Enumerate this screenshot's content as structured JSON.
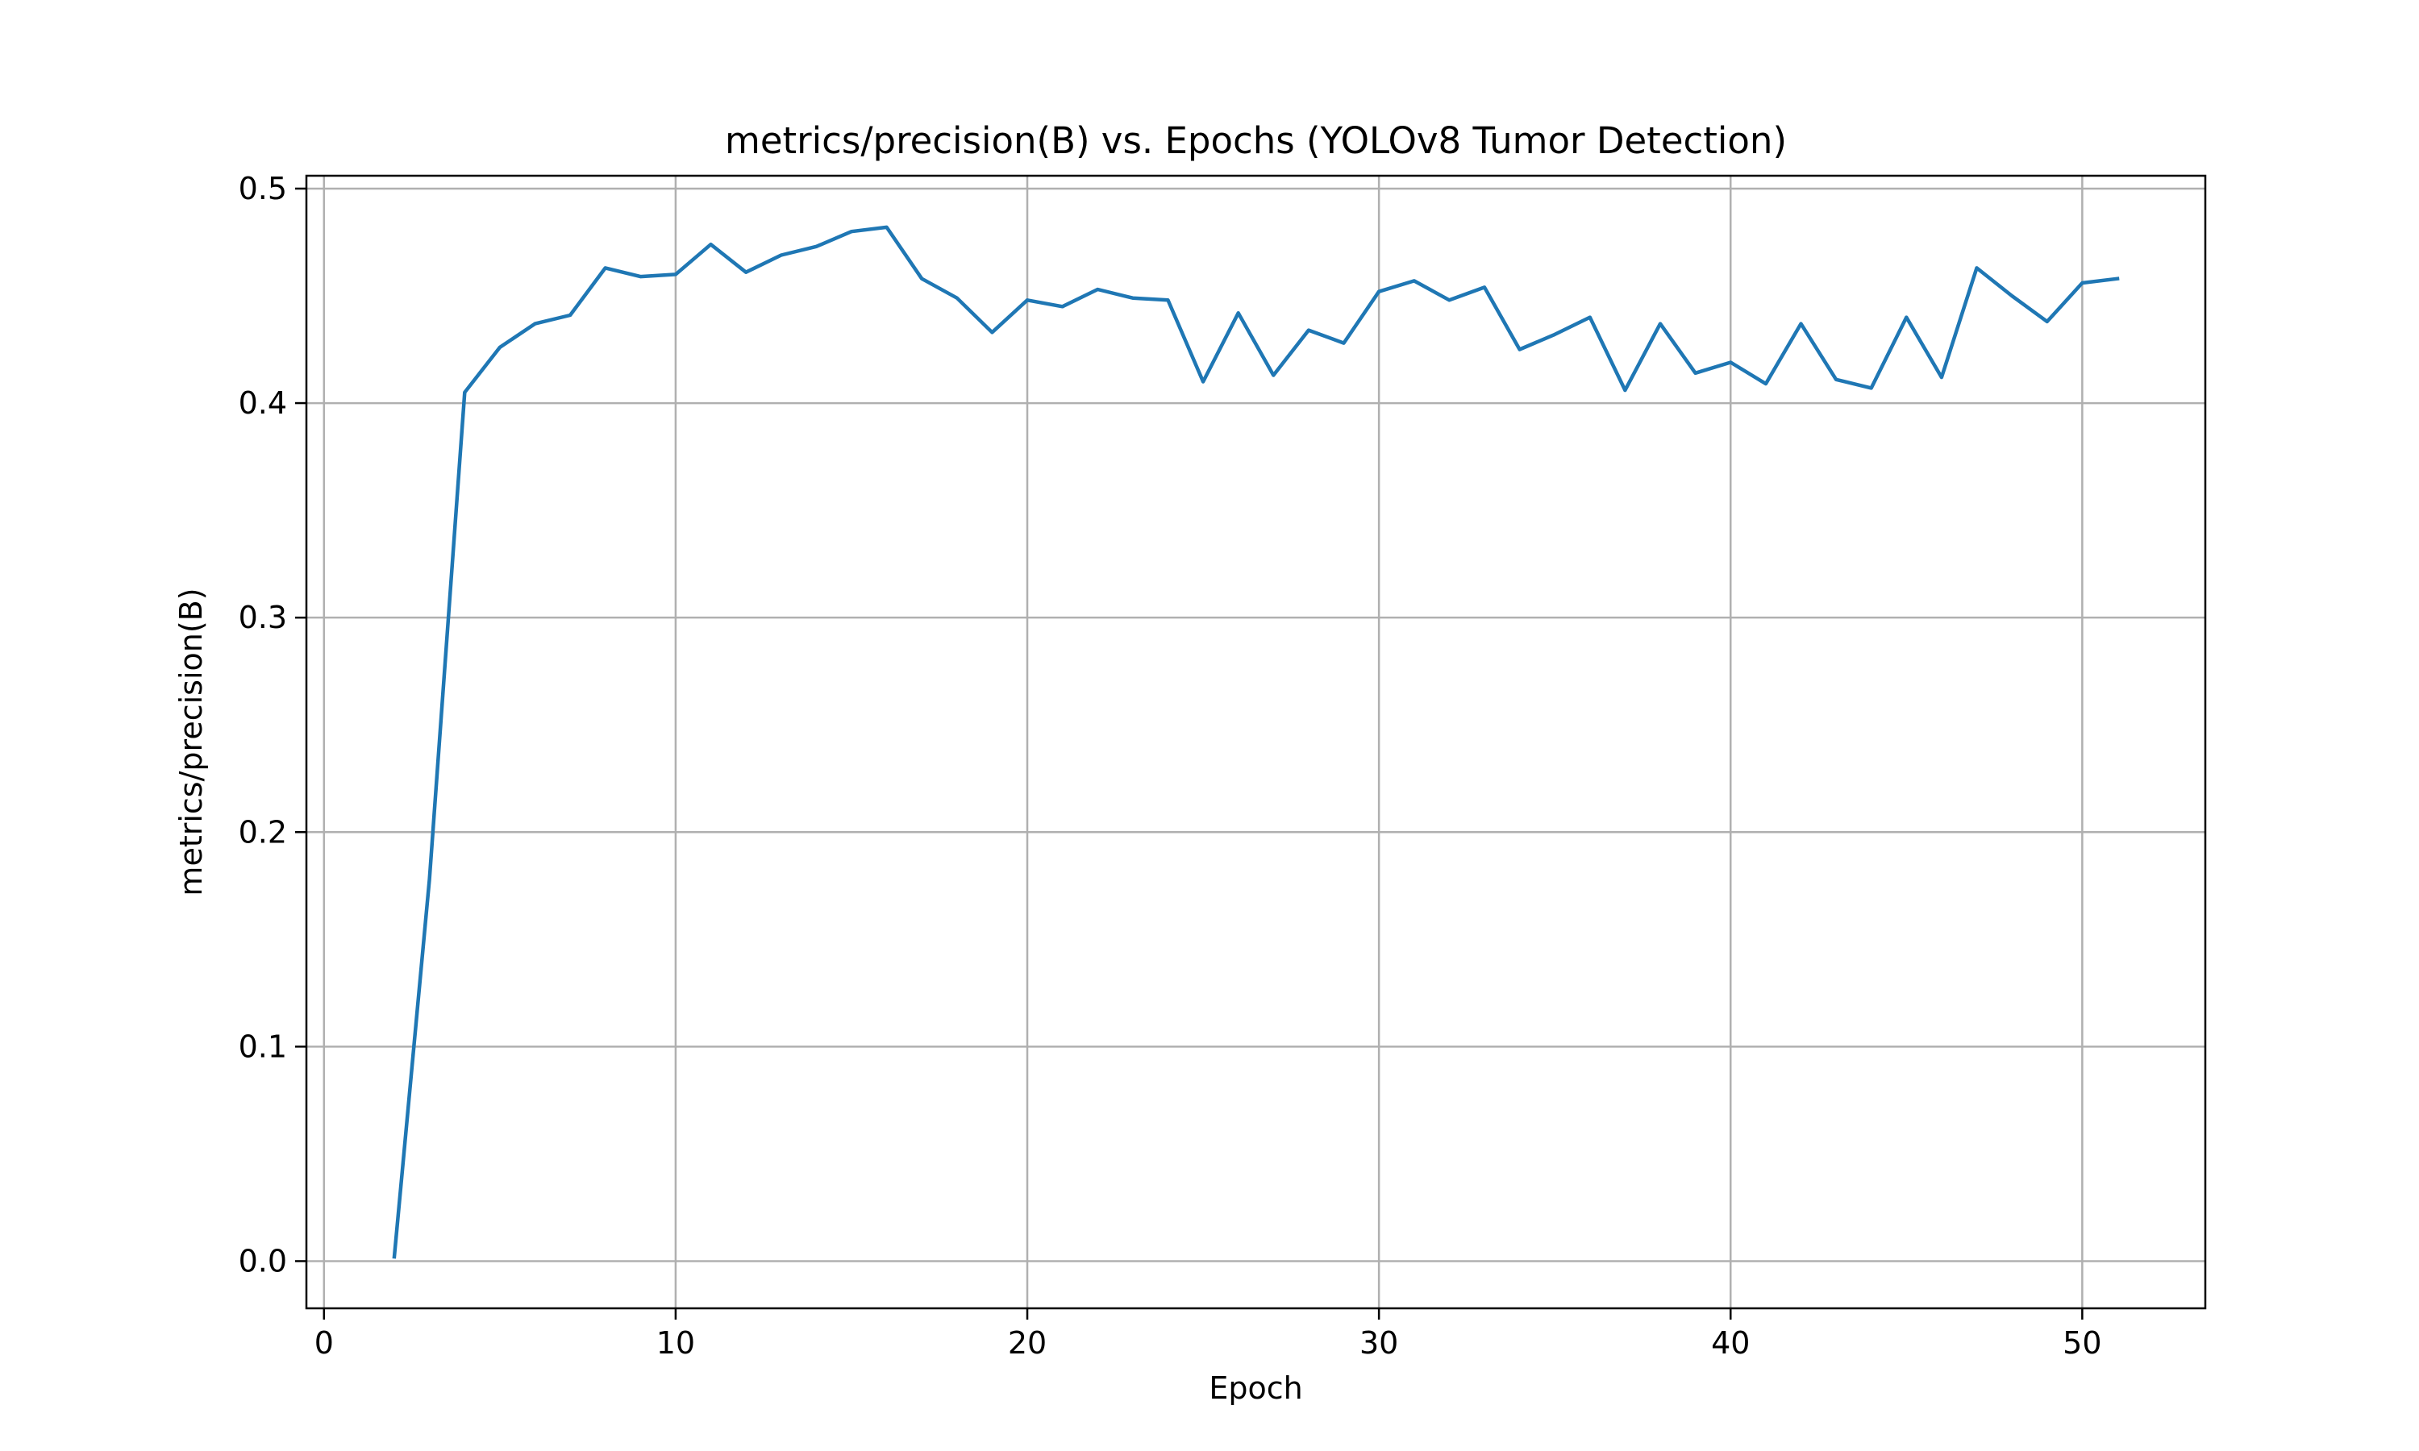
{
  "chart_data": {
    "type": "line",
    "title": "metrics/precision(B) vs. Epochs (YOLOv8 Tumor Detection)",
    "xlabel": "Epoch",
    "ylabel": "metrics/precision(B)",
    "xlim": [
      -0.5,
      53.5
    ],
    "ylim": [
      -0.022,
      0.506
    ],
    "xticks": [
      0,
      10,
      20,
      30,
      40,
      50
    ],
    "xtick_labels": [
      "0",
      "10",
      "20",
      "30",
      "40",
      "50"
    ],
    "yticks": [
      0.0,
      0.1,
      0.2,
      0.3,
      0.4,
      0.5
    ],
    "ytick_labels": [
      "0.0",
      "0.1",
      "0.2",
      "0.3",
      "0.4",
      "0.5"
    ],
    "grid": true,
    "series": [
      {
        "color": "#1f77b4",
        "x": [
          2,
          3,
          4,
          5,
          6,
          7,
          8,
          9,
          10,
          11,
          12,
          13,
          14,
          15,
          16,
          17,
          18,
          19,
          20,
          21,
          22,
          23,
          24,
          25,
          26,
          27,
          28,
          29,
          30,
          31,
          32,
          33,
          34,
          35,
          36,
          37,
          38,
          39,
          40,
          41,
          42,
          43,
          44,
          45,
          46,
          47,
          48,
          49,
          50,
          51
        ],
        "y": [
          0.002,
          0.178,
          0.405,
          0.426,
          0.437,
          0.441,
          0.463,
          0.459,
          0.46,
          0.474,
          0.461,
          0.469,
          0.473,
          0.48,
          0.482,
          0.458,
          0.449,
          0.433,
          0.448,
          0.445,
          0.453,
          0.449,
          0.448,
          0.41,
          0.442,
          0.413,
          0.434,
          0.428,
          0.452,
          0.457,
          0.448,
          0.454,
          0.425,
          0.432,
          0.44,
          0.406,
          0.437,
          0.414,
          0.419,
          0.409,
          0.437,
          0.411,
          0.407,
          0.44,
          0.412,
          0.463,
          0.45,
          0.438,
          0.456,
          0.458
        ]
      }
    ]
  },
  "colors": {
    "line": "#1f77b4",
    "grid": "#b0b0b0",
    "axes": "#000000",
    "background": "#ffffff"
  }
}
